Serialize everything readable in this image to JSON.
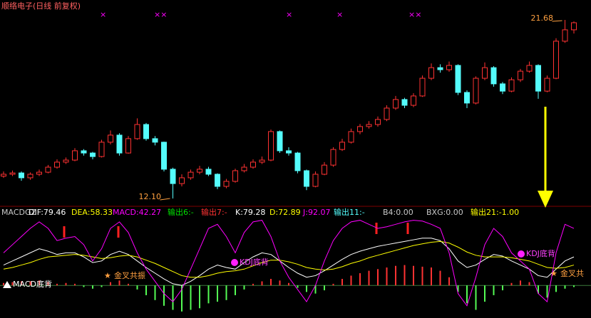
{
  "chart_data": [
    {
      "type": "candlestick",
      "title": "顺络电子(日线 前复权)",
      "open": [
        13.3,
        13.4,
        13.47,
        13.21,
        13.4,
        13.51,
        13.78,
        14.05,
        14.16,
        14.66,
        14.54,
        14.35,
        15.12,
        15.5,
        14.54,
        15.31,
        16.07,
        15.31,
        15.12,
        13.67,
        12.9,
        13.21,
        13.51,
        13.67,
        13.4,
        12.75,
        13.02,
        13.59,
        13.78,
        14.05,
        14.16,
        15.69,
        14.66,
        14.54,
        13.59,
        12.75,
        13.4,
        13.89,
        14.73,
        15.12,
        15.69,
        15.96,
        16.07,
        16.34,
        16.95,
        17.41,
        17.1,
        17.6,
        18.55,
        19.12,
        19.01,
        19.24,
        17.79,
        17.22,
        18.55,
        19.12,
        18.25,
        17.86,
        18.47,
        18.93,
        19.24,
        17.86,
        18.55,
        20.54,
        21.15
      ],
      "high": [
        13.55,
        13.6,
        13.55,
        13.5,
        13.65,
        13.9,
        14.2,
        14.3,
        14.8,
        14.75,
        14.6,
        15.25,
        15.75,
        15.6,
        15.45,
        16.4,
        16.15,
        15.45,
        15.15,
        13.75,
        13.4,
        13.65,
        13.85,
        13.8,
        13.45,
        13.15,
        13.7,
        13.95,
        14.2,
        14.35,
        15.8,
        15.75,
        14.85,
        14.6,
        13.65,
        13.55,
        14.05,
        14.85,
        15.3,
        15.85,
        16.1,
        16.25,
        16.5,
        17.1,
        17.6,
        17.5,
        17.75,
        18.7,
        19.35,
        19.3,
        19.45,
        19.3,
        17.9,
        18.65,
        19.4,
        19.2,
        18.35,
        18.6,
        19.05,
        19.45,
        19.3,
        18.7,
        20.7,
        21.68,
        21.6
      ],
      "low": [
        13.2,
        13.3,
        13.05,
        13.1,
        13.3,
        13.45,
        13.7,
        13.95,
        14.1,
        14.4,
        14.2,
        14.3,
        15.0,
        14.4,
        14.5,
        15.25,
        15.2,
        14.95,
        13.55,
        12.1,
        12.75,
        13.1,
        13.4,
        13.3,
        12.6,
        12.65,
        12.95,
        13.5,
        13.7,
        13.95,
        14.1,
        14.55,
        14.4,
        13.45,
        12.55,
        12.7,
        13.35,
        13.8,
        14.65,
        15.05,
        15.55,
        15.85,
        15.95,
        16.25,
        16.85,
        16.95,
        17.0,
        17.55,
        18.45,
        18.85,
        18.9,
        17.65,
        16.95,
        17.15,
        18.45,
        18.1,
        17.7,
        17.8,
        18.35,
        18.85,
        17.45,
        17.8,
        18.5,
        20.45,
        20.95
      ],
      "close": [
        13.4,
        13.47,
        13.21,
        13.4,
        13.51,
        13.78,
        14.05,
        14.16,
        14.66,
        14.54,
        14.35,
        15.12,
        15.5,
        14.54,
        15.31,
        16.07,
        15.31,
        15.12,
        13.67,
        12.9,
        13.21,
        13.51,
        13.67,
        13.4,
        12.75,
        13.02,
        13.59,
        13.78,
        14.05,
        14.16,
        15.69,
        14.66,
        14.54,
        13.59,
        12.75,
        13.4,
        13.89,
        14.73,
        15.12,
        15.69,
        15.96,
        16.07,
        16.34,
        16.95,
        17.41,
        17.1,
        17.6,
        18.55,
        19.12,
        19.01,
        19.24,
        17.79,
        17.22,
        18.55,
        19.12,
        18.25,
        17.86,
        18.47,
        18.93,
        19.24,
        17.86,
        18.55,
        20.54,
        21.15,
        21.53
      ],
      "ylim": [
        11.68,
        22.75
      ],
      "up_color": "#ff3232",
      "down_color": "#54fcfc",
      "annotations": [
        {
          "value": 12.1,
          "label": "12.10"
        },
        {
          "value": 21.68,
          "label": "21.68"
        }
      ]
    },
    {
      "type": "indicator",
      "header": [
        {
          "text": "MACDGZ",
          "color": "#c8c8c8"
        },
        {
          "text": "DIF:79.46",
          "color": "#ffffff"
        },
        {
          "text": "DEA:58.33",
          "color": "#ffff00"
        },
        {
          "text": "MACD:42.27",
          "color": "#ff00ff"
        },
        {
          "text": "输出6:-",
          "color": "#00e000"
        },
        {
          "text": "输出7:-",
          "color": "#ff3232"
        },
        {
          "text": "K:79.28",
          "color": "#ffffff"
        },
        {
          "text": "D:72.89",
          "color": "#ffff00"
        },
        {
          "text": "J:92.07",
          "color": "#ff00ff"
        },
        {
          "text": "输出11:-",
          "color": "#54fcfc"
        },
        {
          "text": "B4:0.00",
          "color": "#c8c8c8"
        },
        {
          "text": "BXG:0.00",
          "color": "#c8c8c8"
        },
        {
          "text": "输出21:-1.00",
          "color": "#ffff00"
        }
      ],
      "ylim": [
        -40,
        84
      ],
      "histogram": {
        "values": [
          3,
          4,
          5,
          5,
          6,
          4,
          2,
          3,
          2,
          -2,
          -4,
          -2,
          4,
          6,
          2,
          -5,
          -12,
          -18,
          -25,
          -30,
          -32,
          -30,
          -28,
          -22,
          -20,
          -18,
          -12,
          -5,
          2,
          5,
          8,
          6,
          3,
          -3,
          -8,
          -10,
          -6,
          2,
          8,
          12,
          15,
          18,
          20,
          22,
          24,
          25,
          24,
          23,
          22,
          18,
          10,
          -8,
          -22,
          -30,
          -20,
          -12,
          -6,
          3,
          6,
          4,
          -10,
          -15,
          -8,
          -4,
          -2
        ],
        "up_color": "#ff3232",
        "down_color": "#54fc54"
      },
      "series": [
        {
          "color": "#ffffff",
          "values": [
            25,
            30,
            35,
            40,
            45,
            42,
            38,
            40,
            40,
            35,
            28,
            30,
            38,
            42,
            38,
            30,
            22,
            15,
            8,
            2,
            0,
            5,
            12,
            20,
            25,
            22,
            20,
            28,
            35,
            40,
            38,
            30,
            22,
            15,
            10,
            12,
            18,
            25,
            32,
            38,
            42,
            45,
            48,
            50,
            52,
            54,
            56,
            58,
            58,
            55,
            45,
            30,
            22,
            25,
            32,
            38,
            36,
            30,
            25,
            20,
            12,
            10,
            20,
            30,
            35
          ]
        },
        {
          "color": "#ffff00",
          "values": [
            20,
            22,
            25,
            28,
            32,
            35,
            36,
            37,
            38,
            37,
            35,
            33,
            34,
            36,
            37,
            35,
            31,
            27,
            22,
            17,
            12,
            10,
            10,
            12,
            15,
            17,
            18,
            20,
            24,
            28,
            31,
            31,
            29,
            26,
            22,
            20,
            19,
            20,
            23,
            27,
            30,
            34,
            37,
            40,
            43,
            46,
            49,
            51,
            53,
            54,
            52,
            47,
            41,
            37,
            35,
            35,
            35,
            34,
            32,
            30,
            26,
            22,
            21,
            22,
            25
          ]
        },
        {
          "color": "#ff00ff",
          "values": [
            40,
            50,
            60,
            70,
            78,
            70,
            55,
            58,
            60,
            50,
            30,
            45,
            70,
            78,
            65,
            40,
            20,
            5,
            -10,
            -20,
            -5,
            20,
            45,
            70,
            75,
            60,
            40,
            65,
            78,
            80,
            60,
            30,
            10,
            -5,
            -20,
            0,
            30,
            55,
            70,
            78,
            80,
            75,
            70,
            72,
            75,
            78,
            80,
            79,
            75,
            70,
            40,
            -10,
            -25,
            10,
            50,
            70,
            60,
            40,
            30,
            20,
            -10,
            -20,
            40,
            75,
            70
          ]
        }
      ],
      "annotations": [
        {
          "text": "MACD底背",
          "color": "#ffffff"
        },
        {
          "text": "金叉共振",
          "color": "#ffa040"
        },
        {
          "text": "KDJ底背",
          "color": "#ff40ff"
        },
        {
          "text": "KDJ底背",
          "color": "#ff40ff"
        },
        {
          "text": "金叉共",
          "color": "#ffa040"
        }
      ]
    }
  ]
}
